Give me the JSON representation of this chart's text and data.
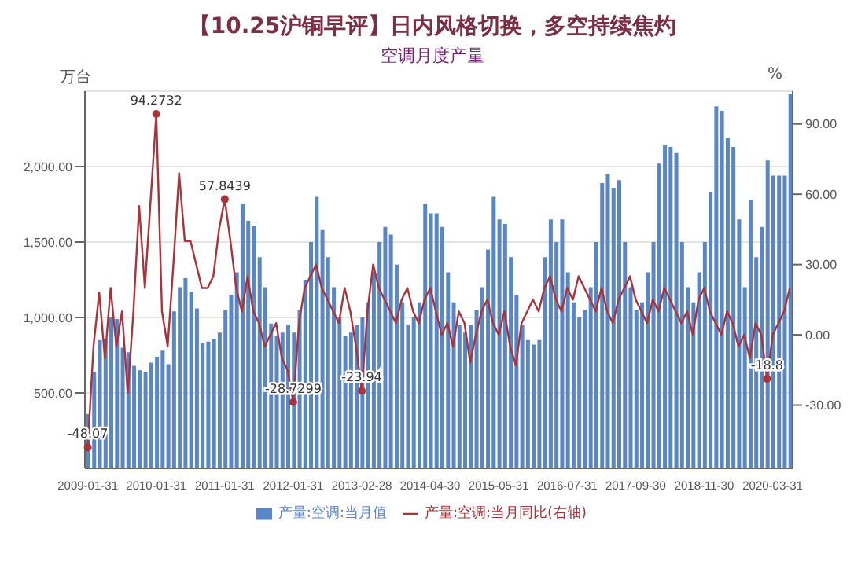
{
  "chart_data": {
    "type": "bar",
    "title": "空调月度产量",
    "annotations": [
      "【10.25沪铜早评】日内风格切换，多空持续焦灼"
    ],
    "ylabel": "万台",
    "y2label": "%",
    "categories": [
      "2009-01-31",
      null,
      null,
      null,
      null,
      null,
      null,
      null,
      null,
      null,
      null,
      null,
      "2010-01-31",
      null,
      null,
      null,
      null,
      null,
      null,
      null,
      null,
      null,
      null,
      null,
      "2011-01-31",
      null,
      null,
      null,
      null,
      null,
      null,
      null,
      null,
      null,
      null,
      null,
      "2012-01-31",
      null,
      null,
      null,
      null,
      null,
      null,
      null,
      null,
      null,
      null,
      null,
      "2013-02-28",
      null,
      null,
      null,
      null,
      null,
      null,
      null,
      null,
      null,
      null,
      null,
      "2014-04-30",
      null,
      null,
      null,
      null,
      null,
      null,
      null,
      null,
      null,
      null,
      null,
      "2015-05-31",
      null,
      null,
      null,
      null,
      null,
      null,
      null,
      null,
      null,
      null,
      null,
      "2016-07-31",
      null,
      null,
      null,
      null,
      null,
      null,
      null,
      null,
      null,
      null,
      null,
      "2017-09-30",
      null,
      null,
      null,
      null,
      null,
      null,
      null,
      null,
      null,
      null,
      null,
      "2018-11-30",
      null,
      null,
      null,
      null,
      null,
      null,
      null,
      null,
      null,
      null,
      null,
      "2020-03-31",
      null,
      null,
      null
    ],
    "series": [
      {
        "name": "产量:空调:当月值",
        "color": "#5a86c4",
        "values": [
          360,
          640,
          850,
          860,
          1000,
          990,
          800,
          770,
          680,
          650,
          640,
          700,
          740,
          780,
          690,
          1040,
          1200,
          1260,
          1170,
          1060,
          830,
          840,
          860,
          900,
          1050,
          1150,
          1300,
          1750,
          1640,
          1610,
          1400,
          1200,
          960,
          880,
          900,
          950,
          900,
          1050,
          1250,
          1500,
          1800,
          1580,
          1400,
          1200,
          1000,
          880,
          900,
          950,
          1000,
          1100,
          1300,
          1500,
          1600,
          1550,
          1350,
          1100,
          950,
          1000,
          1100,
          1750,
          1690,
          1690,
          1600,
          1300,
          1100,
          950,
          900,
          950,
          1050,
          1200,
          1450,
          1800,
          1650,
          1620,
          1400,
          1150,
          950,
          850,
          820,
          850,
          1400,
          1650,
          1500,
          1650,
          1300,
          1100,
          1000,
          1050,
          1200,
          1500,
          1890,
          1950,
          1860,
          1910,
          1500,
          1200,
          1050,
          1100,
          1300,
          1500,
          2020,
          2140,
          2130,
          2090,
          1500,
          1200,
          1100,
          1300,
          1500,
          1830,
          2400,
          2370,
          2190,
          2130,
          1650,
          1200,
          1780,
          1400,
          1600,
          2040,
          1940,
          1940,
          1940,
          2480
        ]
      },
      {
        "name": "产量:空调:当月同比(右轴)",
        "type": "line",
        "axis": "y2",
        "color": "#a8333a",
        "values": [
          -48.07,
          -5,
          18,
          -10,
          20,
          -5,
          10,
          -25,
          10,
          55,
          20,
          57,
          94.2732,
          10,
          -5,
          30,
          69,
          40,
          40,
          30,
          20,
          20,
          25,
          45,
          57.8439,
          40,
          20,
          10,
          25,
          10,
          5,
          -5,
          0,
          5,
          -10,
          -15,
          -28.7299,
          5,
          20,
          25,
          30,
          20,
          15,
          10,
          5,
          20,
          10,
          -5,
          -23.94,
          10,
          30,
          20,
          15,
          10,
          5,
          15,
          20,
          10,
          5,
          15,
          20,
          10,
          0,
          5,
          -5,
          10,
          5,
          -12,
          0,
          10,
          15,
          5,
          0,
          10,
          -5,
          -13,
          5,
          10,
          15,
          10,
          20,
          25,
          15,
          10,
          20,
          15,
          25,
          20,
          15,
          10,
          20,
          10,
          5,
          15,
          20,
          25,
          15,
          10,
          5,
          15,
          10,
          20,
          15,
          10,
          5,
          10,
          0,
          15,
          20,
          10,
          5,
          0,
          10,
          5,
          -5,
          0,
          -10,
          5,
          0,
          -18.8,
          0,
          5,
          10,
          20
        ],
        "value_labels": [
          "-48.07",
          null,
          null,
          null,
          null,
          null,
          null,
          null,
          null,
          null,
          null,
          null,
          "94.2732",
          null,
          null,
          null,
          null,
          null,
          null,
          null,
          null,
          null,
          null,
          null,
          "57.8439",
          null,
          null,
          null,
          null,
          null,
          null,
          null,
          null,
          null,
          null,
          null,
          "-28.7299",
          null,
          null,
          null,
          null,
          null,
          null,
          null,
          null,
          null,
          null,
          null,
          "-23.94",
          null,
          null,
          null,
          null,
          null,
          null,
          null,
          null,
          null,
          null,
          null,
          null,
          null,
          null,
          null,
          null,
          null,
          null,
          null,
          null,
          null,
          null,
          null,
          null,
          null,
          null,
          null,
          null,
          null,
          null,
          null,
          null,
          null,
          null,
          null,
          null,
          null,
          null,
          null,
          null,
          null,
          null,
          null,
          null,
          null,
          null,
          null,
          null,
          null,
          null,
          null,
          null,
          null,
          null,
          null,
          null,
          null,
          null,
          null,
          null,
          null,
          null,
          null,
          null,
          null,
          null,
          null,
          null,
          null,
          null,
          "-18.8",
          null,
          null,
          null,
          null
        ]
      }
    ],
    "ylim": [
      0,
      2500
    ],
    "yticks": [
      {
        "value": 500,
        "label": "500.00"
      },
      {
        "value": 1000,
        "label": "1,000.00"
      },
      {
        "value": 1500,
        "label": "1,500.00"
      },
      {
        "value": 2000,
        "label": "2,000.00"
      }
    ],
    "y2lim": [
      -57,
      104
    ],
    "y2ticks": [
      {
        "value": -30,
        "label": "-30.00"
      },
      {
        "value": 0,
        "label": "0.00"
      },
      {
        "value": 30,
        "label": "30.00"
      },
      {
        "value": 60,
        "label": "60.00"
      },
      {
        "value": 90,
        "label": "90.00"
      }
    ],
    "grid": "y",
    "legend": "bottom"
  }
}
